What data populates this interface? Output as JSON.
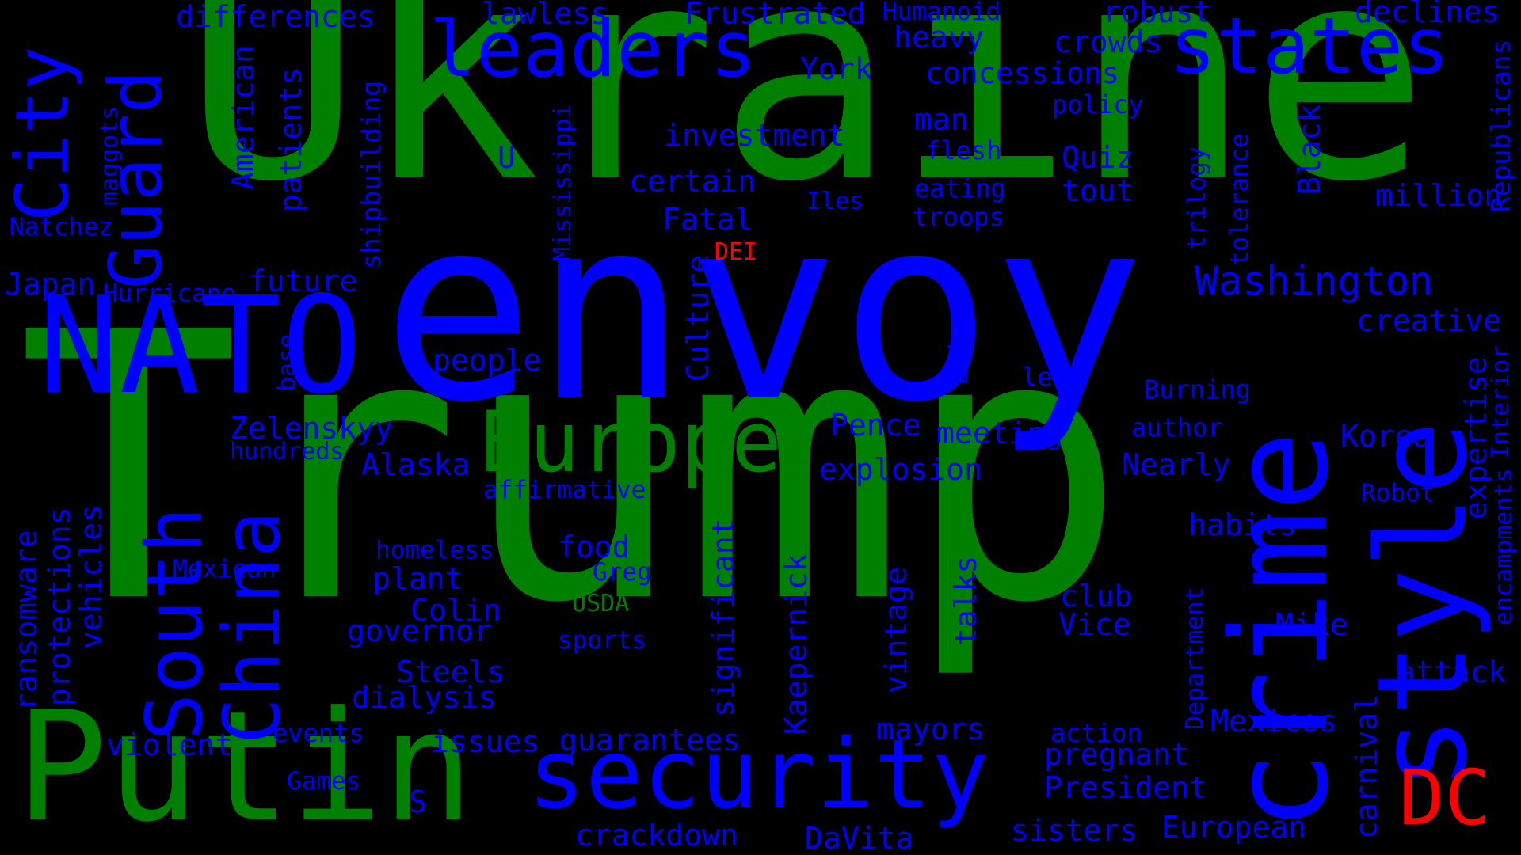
{
  "colors": {
    "background": "#000000",
    "blue": "#0000ff",
    "green": "#008000",
    "red": "#ff0000"
  },
  "words": [
    {
      "text": "Trump",
      "color": "green"
    },
    {
      "text": "Ukraine",
      "color": "green"
    },
    {
      "text": "envoy",
      "color": "blue"
    },
    {
      "text": "Putin",
      "color": "green"
    },
    {
      "text": "crime",
      "color": "blue"
    },
    {
      "text": "style",
      "color": "blue"
    },
    {
      "text": "security",
      "color": "blue"
    },
    {
      "text": "leaders",
      "color": "blue"
    },
    {
      "text": "states",
      "color": "blue"
    },
    {
      "text": "NATO",
      "color": "blue"
    },
    {
      "text": "Europe",
      "color": "green"
    },
    {
      "text": "City",
      "color": "blue"
    },
    {
      "text": "Guard",
      "color": "blue"
    },
    {
      "text": "South",
      "color": "blue"
    },
    {
      "text": "China",
      "color": "blue"
    },
    {
      "text": "DC",
      "color": "red"
    },
    {
      "text": "DEI",
      "color": "red"
    },
    {
      "text": "USDA",
      "color": "green"
    },
    {
      "text": "Washington",
      "color": "blue"
    },
    {
      "text": "differences",
      "color": "blue"
    },
    {
      "text": "lawless",
      "color": "blue"
    },
    {
      "text": "Frustrated",
      "color": "blue"
    },
    {
      "text": "Humanoid",
      "color": "blue"
    },
    {
      "text": "robust",
      "color": "blue"
    },
    {
      "text": "declines",
      "color": "blue"
    },
    {
      "text": "heavy",
      "color": "blue"
    },
    {
      "text": "crowds",
      "color": "blue"
    },
    {
      "text": "York",
      "color": "blue"
    },
    {
      "text": "concessions",
      "color": "blue"
    },
    {
      "text": "policy",
      "color": "blue"
    },
    {
      "text": "man",
      "color": "blue"
    },
    {
      "text": "investment",
      "color": "blue"
    },
    {
      "text": "flesh",
      "color": "blue"
    },
    {
      "text": "Quiz",
      "color": "blue"
    },
    {
      "text": "U",
      "color": "blue"
    },
    {
      "text": "certain",
      "color": "blue"
    },
    {
      "text": "eating",
      "color": "blue"
    },
    {
      "text": "tout",
      "color": "blue"
    },
    {
      "text": "Iles",
      "color": "blue"
    },
    {
      "text": "troops",
      "color": "blue"
    },
    {
      "text": "million",
      "color": "blue"
    },
    {
      "text": "Fatal",
      "color": "blue"
    },
    {
      "text": "Natchez",
      "color": "blue"
    },
    {
      "text": "Japan",
      "color": "blue"
    },
    {
      "text": "Hurricane",
      "color": "blue"
    },
    {
      "text": "future",
      "color": "blue"
    },
    {
      "text": "creative",
      "color": "blue"
    },
    {
      "text": "people",
      "color": "blue"
    },
    {
      "text": "led",
      "color": "blue"
    },
    {
      "text": "Burning",
      "color": "blue"
    },
    {
      "text": "author",
      "color": "blue"
    },
    {
      "text": "Zelenskyy",
      "color": "blue"
    },
    {
      "text": "hundreds",
      "color": "blue"
    },
    {
      "text": "Pence",
      "color": "blue"
    },
    {
      "text": "meeting",
      "color": "blue"
    },
    {
      "text": "Korea",
      "color": "blue"
    },
    {
      "text": "Alaska",
      "color": "blue"
    },
    {
      "text": "explosion",
      "color": "blue"
    },
    {
      "text": "Nearly",
      "color": "blue"
    },
    {
      "text": "affirmative",
      "color": "blue"
    },
    {
      "text": "Robot",
      "color": "blue"
    },
    {
      "text": "habits",
      "color": "blue"
    },
    {
      "text": "homeless",
      "color": "blue"
    },
    {
      "text": "food",
      "color": "blue"
    },
    {
      "text": "Mexican",
      "color": "blue"
    },
    {
      "text": "plant",
      "color": "blue"
    },
    {
      "text": "Greg",
      "color": "blue"
    },
    {
      "text": "club",
      "color": "blue"
    },
    {
      "text": "Colin",
      "color": "blue"
    },
    {
      "text": "Vice",
      "color": "blue"
    },
    {
      "text": "Mike",
      "color": "blue"
    },
    {
      "text": "governor",
      "color": "blue"
    },
    {
      "text": "sports",
      "color": "blue"
    },
    {
      "text": "Steels",
      "color": "blue"
    },
    {
      "text": "attack",
      "color": "blue"
    },
    {
      "text": "dialysis",
      "color": "blue"
    },
    {
      "text": "Mexicos",
      "color": "blue"
    },
    {
      "text": "mayors",
      "color": "blue"
    },
    {
      "text": "action",
      "color": "blue"
    },
    {
      "text": "events",
      "color": "blue"
    },
    {
      "text": "violent",
      "color": "blue"
    },
    {
      "text": "issues",
      "color": "blue"
    },
    {
      "text": "guarantees",
      "color": "blue"
    },
    {
      "text": "pregnant",
      "color": "blue"
    },
    {
      "text": "Games",
      "color": "blue"
    },
    {
      "text": "President",
      "color": "blue"
    },
    {
      "text": "S",
      "color": "blue"
    },
    {
      "text": "sisters",
      "color": "blue"
    },
    {
      "text": "European",
      "color": "blue"
    },
    {
      "text": "crackdown",
      "color": "blue"
    },
    {
      "text": "DaVita",
      "color": "blue"
    },
    {
      "text": "Mississippi",
      "color": "blue"
    },
    {
      "text": "shipbuilding",
      "color": "blue"
    },
    {
      "text": "patients",
      "color": "blue"
    },
    {
      "text": "American",
      "color": "blue"
    },
    {
      "text": "maggots",
      "color": "blue"
    },
    {
      "text": "Culture",
      "color": "blue"
    },
    {
      "text": "base",
      "color": "blue"
    },
    {
      "text": "Erin",
      "color": "blue"
    },
    {
      "text": "trilogy",
      "color": "blue"
    },
    {
      "text": "tolerance",
      "color": "blue"
    },
    {
      "text": "Black",
      "color": "blue"
    },
    {
      "text": "Republicans",
      "color": "blue"
    },
    {
      "text": "Interior",
      "color": "blue"
    },
    {
      "text": "expertise",
      "color": "blue"
    },
    {
      "text": "encampments",
      "color": "blue"
    },
    {
      "text": "ransomware",
      "color": "blue"
    },
    {
      "text": "protections",
      "color": "blue"
    },
    {
      "text": "vehicles",
      "color": "blue"
    },
    {
      "text": "significant",
      "color": "blue"
    },
    {
      "text": "Kaepernick",
      "color": "blue"
    },
    {
      "text": "vintage",
      "color": "blue"
    },
    {
      "text": "talks",
      "color": "blue"
    },
    {
      "text": "Department",
      "color": "blue"
    },
    {
      "text": "carnival",
      "color": "blue"
    }
  ]
}
